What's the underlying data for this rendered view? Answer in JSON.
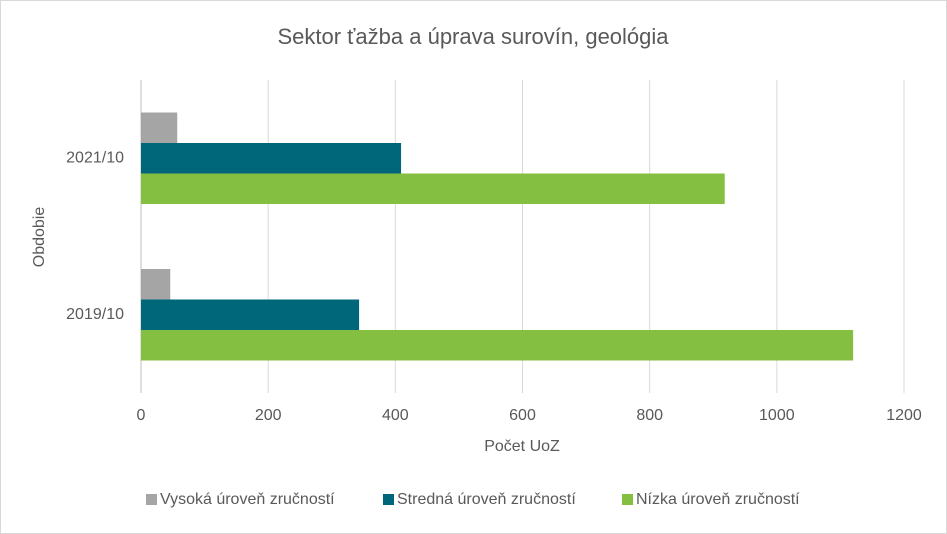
{
  "chart_data": {
    "type": "bar",
    "orientation": "horizontal",
    "title": "Sektor ťažba a úprava surovín, geológia",
    "x_label": "Počet UoZ",
    "y_label": "Obdobie",
    "categories": [
      "2021/10",
      "2019/10"
    ],
    "series": [
      {
        "name": "Vysoká úroveň zručností",
        "color": "#a5a5a5",
        "values": [
          57,
          46
        ]
      },
      {
        "name": "Stredná úroveň zručností",
        "color": "#00667a",
        "values": [
          409,
          343
        ]
      },
      {
        "name": "Nízka úroveň zručností",
        "color": "#84bf41",
        "values": [
          918,
          1120
        ]
      }
    ],
    "xlim": [
      0,
      1200
    ],
    "xticks": [
      0,
      200,
      400,
      600,
      800,
      1000,
      1200
    ],
    "grid": true,
    "legend": "bottom"
  }
}
